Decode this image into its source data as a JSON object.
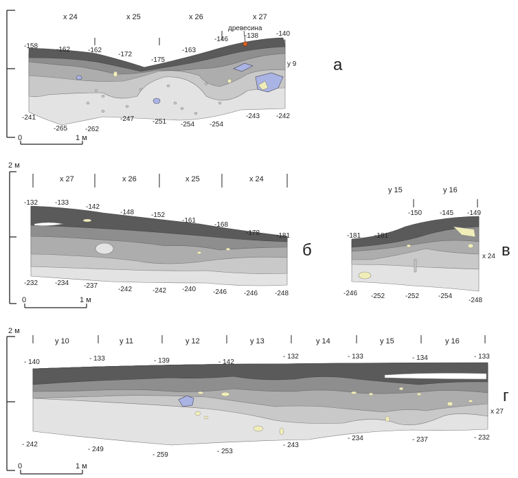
{
  "profiles": [
    {
      "id": "a",
      "letter": "а",
      "grid_labels": [
        "x 24",
        "x 25",
        "x 26",
        "x 27"
      ],
      "side_label": "y 9",
      "annotation": "древесина",
      "top_depths": [
        "-158",
        "-162",
        "-162",
        "-172",
        "-175",
        "-163",
        "-146",
        "-138",
        "-140"
      ],
      "bottom_depths": [
        "-241",
        "-265",
        "-262",
        "-247",
        "-251",
        "-254",
        "-254",
        "-243",
        "-242"
      ],
      "scale_zero": "0",
      "scale_label": "1 м"
    },
    {
      "id": "b",
      "letter": "б",
      "scale_top_label": "2 м",
      "grid_labels": [
        "x 27",
        "x 26",
        "x 25",
        "x 24"
      ],
      "top_depths": [
        "-132",
        "-133",
        "-142",
        "-148",
        "-152",
        "-161",
        "-168",
        "-178",
        "-181"
      ],
      "bottom_depths": [
        "-232",
        "-234",
        "-237",
        "-242",
        "-242",
        "-240",
        "-246",
        "-246",
        "-248"
      ],
      "scale_zero": "0",
      "scale_label": "1 м"
    },
    {
      "id": "v",
      "letter": "в",
      "grid_labels": [
        "y 15",
        "y 16"
      ],
      "side_label": "x 24",
      "top_depths": [
        "-181",
        "-181",
        "-150",
        "-145",
        "-149"
      ],
      "bottom_depths": [
        "-246",
        "-252",
        "-252",
        "-254",
        "-248"
      ]
    },
    {
      "id": "g",
      "letter": "г",
      "scale_top_label": "2 м",
      "grid_labels": [
        "y 10",
        "y 11",
        "y 12",
        "y 13",
        "y 14",
        "y 15",
        "y 16"
      ],
      "side_label": "x 27",
      "top_depths": [
        "- 140",
        "- 133",
        "- 139",
        "- 142",
        "- 132",
        "- 133",
        "- 134",
        "- 133"
      ],
      "bottom_depths": [
        "- 242",
        "- 249",
        "- 259",
        "- 253",
        "- 243",
        "- 234",
        "- 237",
        "- 232"
      ],
      "scale_zero": "0",
      "scale_label": "1 м"
    }
  ],
  "colors": {
    "layer_top": "#5a5a5a",
    "layer_2": "#8e8e8e",
    "layer_3": "#adadad",
    "layer_4": "#c9c9c9",
    "layer_bottom": "#e3e3e3",
    "stone": "#a9b4e4",
    "clay": "#f1edb9",
    "wood": "#d7652a"
  }
}
